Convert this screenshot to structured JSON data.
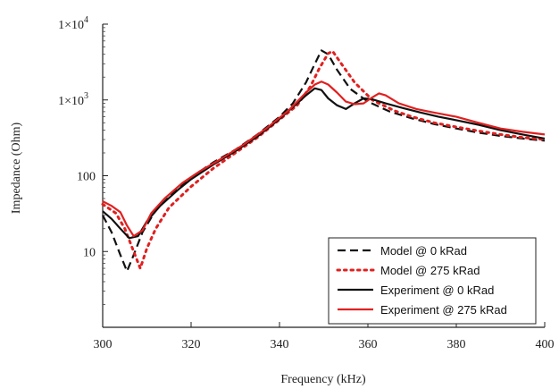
{
  "chart_data": {
    "type": "line",
    "xlabel": "Frequency (kHz)",
    "ylabel": "Impedance (Ohm)",
    "xlim": [
      300,
      400
    ],
    "ylim": [
      1,
      10000
    ],
    "yscale": "log",
    "grid": false,
    "legend_position": "bottom-right",
    "x_ticks": [
      {
        "value": 300,
        "label": "300"
      },
      {
        "value": 320,
        "label": "320"
      },
      {
        "value": 340,
        "label": "340"
      },
      {
        "value": 360,
        "label": "360"
      },
      {
        "value": 380,
        "label": "380"
      },
      {
        "value": 400,
        "label": "400"
      }
    ],
    "y_ticks": [
      {
        "value": 10,
        "label": "10"
      },
      {
        "value": 100,
        "label": "100"
      },
      {
        "value": 1000,
        "label": "1×10",
        "sup": "3"
      },
      {
        "value": 10000,
        "label": "1×10",
        "sup": "4"
      }
    ],
    "series": [
      {
        "name": "Model @ 0 kRad",
        "color": "#111111",
        "style": "dashed",
        "points": [
          [
            300,
            30
          ],
          [
            302,
            18
          ],
          [
            304,
            9
          ],
          [
            305.5,
            5.5
          ],
          [
            307,
            9
          ],
          [
            309,
            18
          ],
          [
            312,
            35
          ],
          [
            316,
            60
          ],
          [
            320,
            95
          ],
          [
            325,
            150
          ],
          [
            330,
            220
          ],
          [
            335,
            350
          ],
          [
            340,
            600
          ],
          [
            343,
            900
          ],
          [
            346,
            1700
          ],
          [
            348,
            3000
          ],
          [
            349.5,
            4500
          ],
          [
            351,
            4000
          ],
          [
            353,
            2500
          ],
          [
            356,
            1400
          ],
          [
            360,
            950
          ],
          [
            365,
            700
          ],
          [
            370,
            570
          ],
          [
            375,
            480
          ],
          [
            380,
            420
          ],
          [
            385,
            370
          ],
          [
            390,
            335
          ],
          [
            395,
            310
          ],
          [
            400,
            290
          ]
        ]
      },
      {
        "name": "Model @ 275 kRad",
        "color": "#e02020",
        "style": "dotted",
        "points": [
          [
            300,
            42
          ],
          [
            303,
            32
          ],
          [
            305,
            20
          ],
          [
            307,
            10
          ],
          [
            308.5,
            6
          ],
          [
            310,
            11
          ],
          [
            312,
            20
          ],
          [
            315,
            38
          ],
          [
            320,
            72
          ],
          [
            325,
            125
          ],
          [
            330,
            200
          ],
          [
            335,
            320
          ],
          [
            340,
            550
          ],
          [
            344,
            850
          ],
          [
            347,
            1500
          ],
          [
            349,
            2600
          ],
          [
            351,
            4100
          ],
          [
            352,
            4400
          ],
          [
            354,
            3000
          ],
          [
            357,
            1700
          ],
          [
            361,
            1000
          ],
          [
            366,
            720
          ],
          [
            370,
            600
          ],
          [
            375,
            500
          ],
          [
            380,
            440
          ],
          [
            385,
            390
          ],
          [
            390,
            350
          ],
          [
            395,
            320
          ],
          [
            400,
            300
          ]
        ]
      },
      {
        "name": "Experiment @ 0 kRad",
        "color": "#111111",
        "style": "solid",
        "points": [
          [
            300,
            34
          ],
          [
            302,
            27
          ],
          [
            304,
            20
          ],
          [
            306,
            15
          ],
          [
            308,
            16
          ],
          [
            310,
            25
          ],
          [
            313,
            40
          ],
          [
            317,
            65
          ],
          [
            320,
            90
          ],
          [
            325,
            140
          ],
          [
            330,
            210
          ],
          [
            335,
            330
          ],
          [
            340,
            560
          ],
          [
            344,
            900
          ],
          [
            346,
            1150
          ],
          [
            348,
            1420
          ],
          [
            349.5,
            1350
          ],
          [
            351,
            1050
          ],
          [
            353,
            850
          ],
          [
            355,
            760
          ],
          [
            357,
            900
          ],
          [
            359,
            1050
          ],
          [
            361,
            1020
          ],
          [
            364,
            900
          ],
          [
            368,
            780
          ],
          [
            372,
            680
          ],
          [
            376,
            600
          ],
          [
            380,
            540
          ],
          [
            385,
            470
          ],
          [
            390,
            400
          ],
          [
            395,
            350
          ],
          [
            400,
            310
          ]
        ]
      },
      {
        "name": "Experiment @ 275 kRad",
        "color": "#e02020",
        "style": "solid",
        "points": [
          [
            300,
            46
          ],
          [
            302,
            40
          ],
          [
            304,
            33
          ],
          [
            305.5,
            22
          ],
          [
            307,
            16
          ],
          [
            309,
            19
          ],
          [
            311,
            32
          ],
          [
            314,
            50
          ],
          [
            318,
            80
          ],
          [
            322,
            115
          ],
          [
            327,
            170
          ],
          [
            332,
            260
          ],
          [
            337,
            420
          ],
          [
            342,
            720
          ],
          [
            346,
            1250
          ],
          [
            348,
            1600
          ],
          [
            349.5,
            1750
          ],
          [
            351,
            1600
          ],
          [
            353,
            1250
          ],
          [
            355,
            950
          ],
          [
            357,
            880
          ],
          [
            359,
            900
          ],
          [
            361,
            1080
          ],
          [
            362.5,
            1220
          ],
          [
            364,
            1150
          ],
          [
            367,
            900
          ],
          [
            371,
            760
          ],
          [
            375,
            680
          ],
          [
            380,
            600
          ],
          [
            385,
            500
          ],
          [
            390,
            420
          ],
          [
            395,
            380
          ],
          [
            400,
            350
          ]
        ]
      }
    ]
  }
}
